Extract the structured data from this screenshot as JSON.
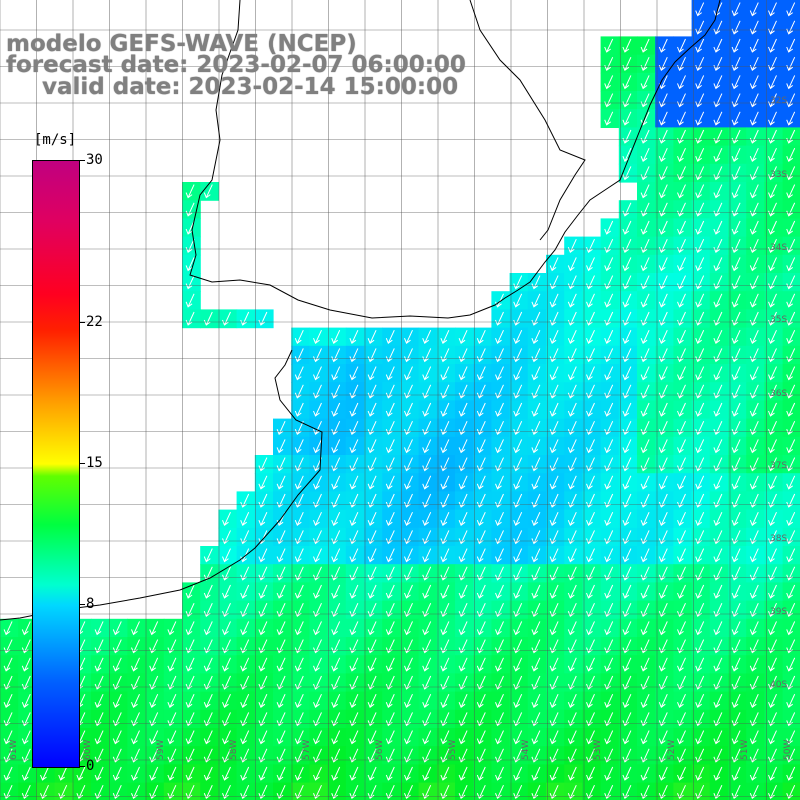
{
  "title": {
    "line1": "modelo GEFS-WAVE (NCEP)",
    "line2": "forecast date: 2023-02-07 06:00:00",
    "line3": "valid date: 2023-02-14 15:00:00"
  },
  "colorbar": {
    "unit": "[m/s]",
    "ticks": [
      {
        "value": 30,
        "label": "30"
      },
      {
        "value": 22,
        "label": "22"
      },
      {
        "value": 15,
        "label": "15"
      },
      {
        "value": 8,
        "label": "8"
      },
      {
        "value": 0,
        "label": "0"
      }
    ],
    "min": 0,
    "max": 30
  },
  "grid": {
    "lat_labels": [
      "32S",
      "33S",
      "34S",
      "35S",
      "36S",
      "37S",
      "38S",
      "39S",
      "40S"
    ],
    "lon_labels": [
      "61W",
      "60W",
      "59W",
      "58W",
      "57W",
      "56W",
      "55W",
      "54W",
      "53W",
      "52W",
      "51W",
      "50W"
    ]
  },
  "colors": {
    "land": "#ffffff",
    "coast": "#000000",
    "grid": "#555555",
    "arrows": "#ffffff"
  }
}
